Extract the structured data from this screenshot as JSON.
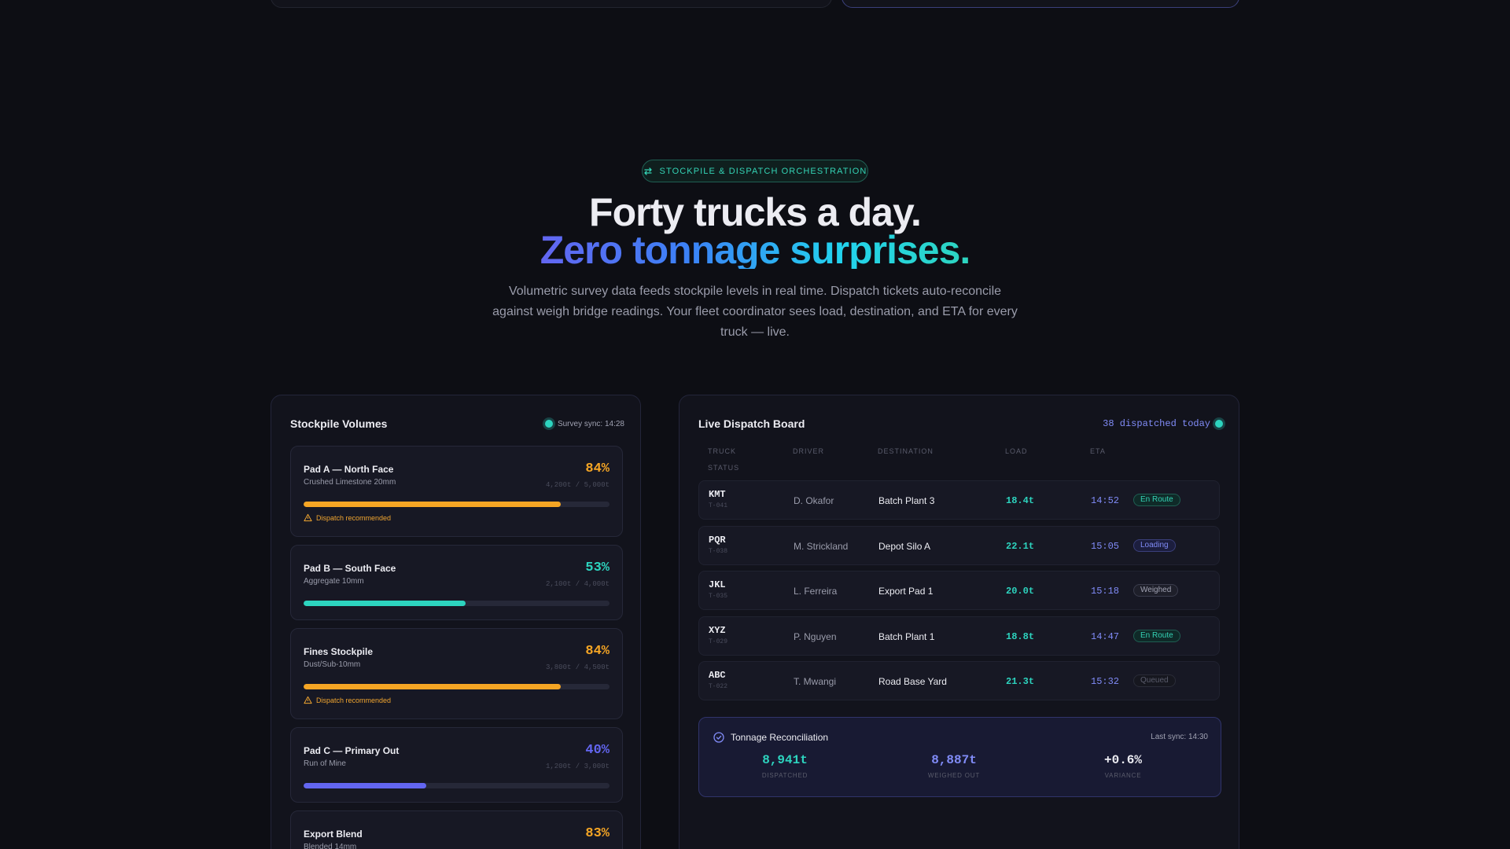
{
  "hero": {
    "eyebrow": "STOCKPILE & DISPATCH ORCHESTRATION",
    "title_line1": "Forty trucks a day.",
    "title_line2": "Zero tonnage surprises.",
    "subtitle": "Volumetric survey data feeds stockpile levels in real time. Dispatch tickets auto-reconcile against weigh bridge readings. Your fleet coordinator sees load, destination, and ETA for every truck — live."
  },
  "stockpile": {
    "title": "Stockpile Volumes",
    "sync_label": "Survey sync: 14:28",
    "items": [
      {
        "name": "Pad A — North Face",
        "type": "Crushed Limestone 20mm",
        "percent_label": "84%",
        "fill": 0.84,
        "qty": "4,200t / 5,000t",
        "warning": "Dispatch recommended",
        "color": "#f5a524"
      },
      {
        "name": "Pad B — South Face",
        "type": "Aggregate 10mm",
        "percent_label": "53%",
        "fill": 0.53,
        "qty": "2,100t / 4,000t",
        "warning": "",
        "color": "#2dd4bf"
      },
      {
        "name": "Fines Stockpile",
        "type": "Dust/Sub-10mm",
        "percent_label": "84%",
        "fill": 0.84,
        "qty": "3,800t / 4,500t",
        "warning": "Dispatch recommended",
        "color": "#f5a524"
      },
      {
        "name": "Pad C — Primary Out",
        "type": "Run of Mine",
        "percent_label": "40%",
        "fill": 0.4,
        "qty": "1,200t / 3,000t",
        "warning": "",
        "color": "#6366f1"
      },
      {
        "name": "Export Blend",
        "type": "Blended 14mm",
        "percent_label": "83%",
        "fill": 0.83,
        "qty": "",
        "warning": "",
        "color": "#f5a524"
      }
    ]
  },
  "dispatch": {
    "title": "Live Dispatch Board",
    "count_label": "38 dispatched today",
    "columns": {
      "truck": "TRUCK",
      "driver": "DRIVER",
      "destination": "DESTINATION",
      "load": "LOAD",
      "eta": "ETA",
      "status": "STATUS"
    },
    "rows": [
      {
        "truck": "KMT",
        "id": "T-041",
        "driver": "D. Okafor",
        "destination": "Batch Plant 3",
        "load": "18.4t",
        "eta": "14:52",
        "status": "En Route",
        "status_class": "b-enroute"
      },
      {
        "truck": "PQR",
        "id": "T-038",
        "driver": "M. Strickland",
        "destination": "Depot Silo A",
        "load": "22.1t",
        "eta": "15:05",
        "status": "Loading",
        "status_class": "b-loading"
      },
      {
        "truck": "JKL",
        "id": "T-035",
        "driver": "L. Ferreira",
        "destination": "Export Pad 1",
        "load": "20.0t",
        "eta": "15:18",
        "status": "Weighed",
        "status_class": "b-weighed"
      },
      {
        "truck": "XYZ",
        "id": "T-029",
        "driver": "P. Nguyen",
        "destination": "Batch Plant 1",
        "load": "18.8t",
        "eta": "14:47",
        "status": "En Route",
        "status_class": "b-enroute"
      },
      {
        "truck": "ABC",
        "id": "T-022",
        "driver": "T. Mwangi",
        "destination": "Road Base Yard",
        "load": "21.3t",
        "eta": "15:32",
        "status": "Queued",
        "status_class": "b-queued"
      }
    ],
    "reconciliation": {
      "title": "Tonnage Reconciliation",
      "sync_label": "Last sync: 14:30",
      "stats": [
        {
          "value": "8,941t",
          "label": "DISPATCHED",
          "color": "#2dd4bf"
        },
        {
          "value": "8,887t",
          "label": "WEIGHED OUT",
          "color": "#818cf8"
        },
        {
          "value": "+0.6%",
          "label": "VARIANCE",
          "color": "#ececf2"
        }
      ]
    }
  },
  "icons": {
    "eyebrow": "swap-arrows-icon",
    "warning": "warning-triangle-icon",
    "reconcile": "check-circle-icon"
  }
}
